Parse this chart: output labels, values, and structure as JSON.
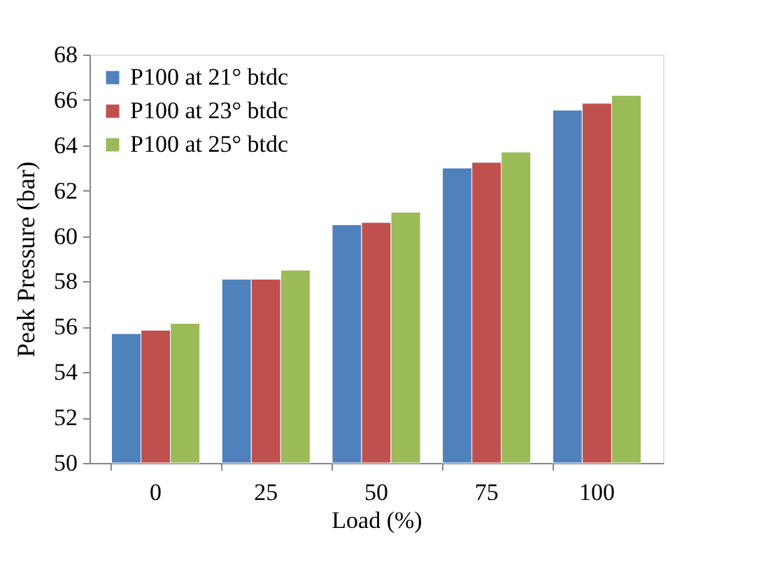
{
  "chart_data": {
    "type": "bar",
    "xlabel": "Load (%)",
    "ylabel": "Peak Pressure (bar)",
    "categories": [
      "0",
      "25",
      "50",
      "75",
      "100"
    ],
    "series": [
      {
        "name": "P100 at 21° btdc",
        "color": "#4f81bd",
        "values": [
          55.7,
          58.1,
          60.5,
          63.0,
          65.55
        ]
      },
      {
        "name": "P100 at 23° btdc",
        "color": "#c0504d",
        "values": [
          55.85,
          58.1,
          60.6,
          63.25,
          65.85
        ]
      },
      {
        "name": "P100 at 25° btdc",
        "color": "#9bbb59",
        "values": [
          56.15,
          58.5,
          61.05,
          63.7,
          66.2
        ]
      }
    ],
    "ylim": [
      50,
      68
    ],
    "yticks": [
      50,
      52,
      54,
      56,
      58,
      60,
      62,
      64,
      66,
      68
    ],
    "grid": false,
    "legend": "top left"
  }
}
